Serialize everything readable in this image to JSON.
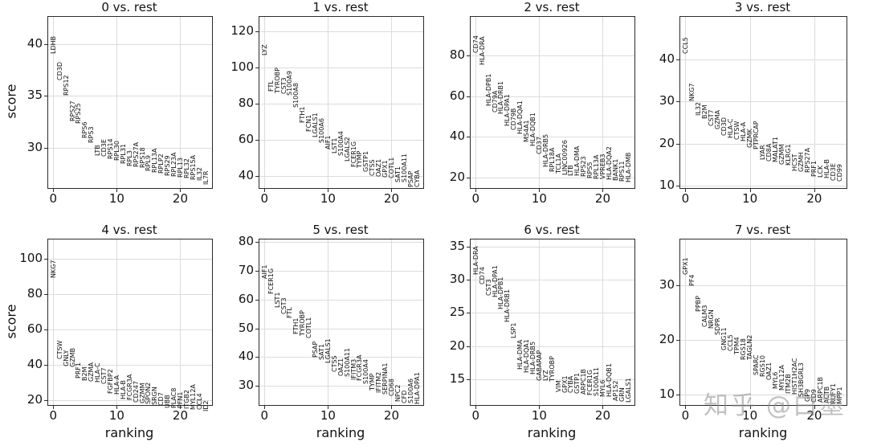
{
  "figure": {
    "ylabel": "score",
    "xlabel": "ranking",
    "watermark": "知乎 @白墨",
    "colors": {
      "grid": "#dcdcdc",
      "spine": "#2b2b2b",
      "text": "#141414",
      "watermark": "#8f8f8f",
      "background": "#ffffff"
    }
  },
  "chart_data": [
    {
      "type": "scatter",
      "title": "0 vs. rest",
      "xlabel": "ranking",
      "ylabel": "score",
      "xlim": [
        -0.8,
        25.0
      ],
      "ylim": [
        26.1,
        42.6
      ],
      "xticks": [
        0,
        10,
        20
      ],
      "yticks": [
        30,
        35,
        40
      ],
      "grid": true,
      "genes": [
        "LDHB",
        "CD3D",
        "RPS12",
        "RPS27",
        "RPS25",
        "RPS6",
        "RPS3",
        "LTB",
        "CD3E",
        "RPS14",
        "RPL30",
        "RPL31",
        "RPL3",
        "RPS27A",
        "RPS18",
        "RPL9",
        "RPL13A",
        "RPLP2",
        "RPS29",
        "RPL23A",
        "RPL13",
        "RPL32",
        "RPS15A",
        "IL32",
        "IL7R"
      ],
      "scores": [
        39.0,
        36.5,
        35.0,
        32.5,
        32.3,
        30.9,
        30.4,
        29.2,
        29.1,
        28.9,
        28.7,
        28.4,
        28.2,
        28.1,
        28.0,
        27.7,
        27.6,
        27.5,
        27.3,
        27.2,
        27.1,
        27.0,
        26.9,
        26.8,
        26.4
      ]
    },
    {
      "type": "scatter",
      "title": "1 vs. rest",
      "xlabel": "ranking",
      "ylabel": "score",
      "xlim": [
        -0.8,
        25.0
      ],
      "ylim": [
        33.3,
        128.0
      ],
      "xticks": [
        0,
        10,
        20
      ],
      "yticks": [
        40,
        60,
        80,
        100,
        120
      ],
      "grid": true,
      "genes": [
        "LYZ",
        "FTL",
        "TYROBP",
        "CST3",
        "S100A9",
        "S100A8",
        "FTH1",
        "FCN1",
        "LGALS1",
        "S100A6",
        "AIF1",
        "LST1",
        "S100A4",
        "LGALS2",
        "FCER1G",
        "TYMP",
        "GSTP1",
        "CTSS",
        "OAZ1",
        "GPX1",
        "COTL1",
        "SAT1",
        "S100A11",
        "PSAP",
        "CYBA"
      ],
      "scores": [
        106.7,
        86.7,
        85.8,
        85.3,
        84.4,
        77.8,
        69.3,
        64.4,
        61.3,
        58.2,
        54.7,
        52.4,
        51.1,
        48.0,
        44.9,
        44.4,
        42.2,
        40.0,
        39.6,
        39.1,
        38.7,
        36.4,
        36.2,
        33.9,
        33.8
      ]
    },
    {
      "type": "scatter",
      "title": "2 vs. rest",
      "xlabel": "ranking",
      "ylabel": "score",
      "xlim": [
        -0.8,
        25.0
      ],
      "ylim": [
        14.9,
        98.9
      ],
      "xticks": [
        0,
        10,
        20
      ],
      "yticks": [
        20,
        40,
        60,
        80
      ],
      "grid": true,
      "genes": [
        "CD74",
        "HLA-DRA",
        "HLA-DPB1",
        "CD79A",
        "HLA-DRB1",
        "HLA-DPA1",
        "CD79B",
        "HLA-DQA1",
        "MS4A1",
        "HLA-DQB1",
        "CD37",
        "HLA-DRB5",
        "RPL18A",
        "TCL1A",
        "LINC00926",
        "LTB",
        "HLA-DMA",
        "RPS23",
        "RPS5",
        "RPL13A",
        "VPREB3",
        "HLA-DQA2",
        "BANK1",
        "RPS11",
        "HLA-DMB"
      ],
      "scores": [
        81.2,
        75.3,
        55.3,
        52.1,
        51.3,
        45.4,
        43.4,
        41.4,
        37.2,
        35.3,
        31.3,
        25.1,
        22.8,
        22.0,
        21.2,
        20.8,
        20.7,
        20.4,
        19.6,
        19.3,
        19.2,
        18.9,
        18.5,
        18.1,
        17.7
      ]
    },
    {
      "type": "scatter",
      "title": "3 vs. rest",
      "xlabel": "ranking",
      "ylabel": "score",
      "xlim": [
        -0.8,
        25.0
      ],
      "ylim": [
        9.4,
        50.1
      ],
      "xticks": [
        0,
        10,
        20
      ],
      "yticks": [
        10,
        20,
        30,
        40
      ],
      "grid": true,
      "genes": [
        "CCL5",
        "NKG7",
        "IL32",
        "B2M",
        "CST7",
        "GZMA",
        "CD3D",
        "HLA-C",
        "CTSW",
        "HLA-A",
        "GZMK",
        "PTPRCAP",
        "LYAR",
        "CD8A",
        "MALAT1",
        "GZMM",
        "KLRG1",
        "HCST",
        "GZMH",
        "RPS27A",
        "PRF1",
        "LCK",
        "HLA-B",
        "CD3E",
        "CD99"
      ],
      "scores": [
        41.3,
        30.0,
        26.6,
        25.8,
        24.1,
        23.4,
        21.8,
        21.2,
        20.8,
        20.4,
        18.9,
        18.5,
        16.0,
        15.8,
        15.6,
        14.9,
        14.7,
        13.4,
        13.2,
        13.1,
        12.1,
        11.8,
        11.6,
        11.2,
        11.0
      ]
    },
    {
      "type": "scatter",
      "title": "4 vs. rest",
      "xlabel": "ranking",
      "ylabel": "score",
      "xlim": [
        -0.8,
        25.0
      ],
      "ylim": [
        17.4,
        110.7
      ],
      "xticks": [
        0,
        10,
        20
      ],
      "yticks": [
        20,
        40,
        60,
        80,
        100
      ],
      "grid": true,
      "genes": [
        "NKG7",
        "CTSW",
        "GNLY",
        "GZMB",
        "PRF1",
        "B2M",
        "GZMA",
        "HLA-C",
        "CST7",
        "FGFBP2",
        "HLA-A",
        "HLA-B",
        "FCGR3A",
        "CD247",
        "GZMM",
        "SPON2",
        "SRGN",
        "CD7",
        "UBB",
        "PLAC8",
        "PFN1",
        "ITGB2",
        "MYL12A",
        "CCL4",
        "ID2"
      ],
      "scores": [
        89.0,
        43.0,
        39.2,
        38.8,
        32.4,
        31.2,
        30.4,
        30.2,
        29.1,
        23.7,
        23.1,
        20.4,
        20.1,
        18.9,
        18.1,
        17.7,
        17.2,
        16.9,
        15.8,
        15.7,
        15.5,
        15.0,
        14.9,
        14.6,
        13.8
      ]
    },
    {
      "type": "scatter",
      "title": "5 vs. rest",
      "xlabel": "ranking",
      "ylabel": "score",
      "xlim": [
        -0.8,
        25.0
      ],
      "ylim": [
        23.4,
        80.8
      ],
      "xticks": [
        0,
        10,
        20
      ],
      "yticks": [
        30,
        40,
        50,
        60,
        70,
        80
      ],
      "grid": true,
      "genes": [
        "AIF1",
        "FCER1G",
        "LST1",
        "CST3",
        "FTL",
        "FTH1",
        "TYROBP",
        "COTL1",
        "PSAP",
        "SAT1",
        "LGALS1",
        "CTSS",
        "OAZ1",
        "S100A11",
        "IFITM3",
        "FCGR3A",
        "S100A4",
        "TYMP",
        "IFITM2",
        "SERPINA1",
        "CD68",
        "NPC2",
        "CFD",
        "S100A6",
        "HLA-DPA1"
      ],
      "scores": [
        67.2,
        61.9,
        57.2,
        55.0,
        53.6,
        48.0,
        47.5,
        46.6,
        39.9,
        38.9,
        38.0,
        34.8,
        33.5,
        33.2,
        32.1,
        31.8,
        30.7,
        28.4,
        27.6,
        27.0,
        26.5,
        24.5,
        24.0,
        23.9,
        23.8
      ]
    },
    {
      "type": "scatter",
      "title": "6 vs. rest",
      "xlabel": "ranking",
      "ylabel": "score",
      "xlim": [
        -0.8,
        25.0
      ],
      "ylim": [
        11.1,
        36.1
      ],
      "xticks": [
        0,
        10,
        20
      ],
      "yticks": [
        15,
        20,
        25,
        30,
        35
      ],
      "grid": true,
      "genes": [
        "HLA-DRA",
        "CD74",
        "CST3",
        "HLA-DPA1",
        "HLA-DPB1",
        "HLA-DRB1",
        "LSP1",
        "HLA-DMA",
        "HLA-DQA1",
        "HLA-DRB5",
        "GABARAP",
        "LYZ",
        "TYROBP",
        "VIM",
        "GPX1",
        "CYBA",
        "GSTP1",
        "ARPC1B",
        "FCER1G",
        "S100A11",
        "MYL6",
        "HLA-DQB1",
        "AP1S2",
        "GRN",
        "LGALS1"
      ],
      "scores": [
        30.7,
        29.3,
        27.6,
        27.4,
        25.6,
        23.6,
        21.2,
        16.5,
        16.0,
        15.7,
        14.8,
        14.7,
        14.6,
        13.0,
        12.9,
        12.9,
        12.8,
        12.7,
        12.5,
        12.4,
        12.3,
        12.3,
        11.7,
        11.6,
        11.5
      ]
    },
    {
      "type": "scatter",
      "title": "7 vs. rest",
      "xlabel": "ranking",
      "ylabel": "score",
      "xlim": [
        -0.8,
        25.0
      ],
      "ylim": [
        8.1,
        38.4
      ],
      "xticks": [
        0,
        10,
        20
      ],
      "yticks": [
        10,
        20,
        30
      ],
      "grid": true,
      "genes": [
        "GPX1",
        "PF4",
        "PPBP",
        "CALM3",
        "NRGN",
        "SDPR",
        "GNG11",
        "CCL5",
        "TPM4",
        "RGS18",
        "TAGLN2",
        "SPARC",
        "RGS10",
        "OAZ1",
        "MYL6",
        "MYL12A",
        "ITM2B",
        "HIST1H2AC",
        "SH3BGRL3",
        "GP9",
        "CD9",
        "ARPC1B",
        "ACTB",
        "RUFY1",
        "MPP1"
      ],
      "scores": [
        31.9,
        29.9,
        25.2,
        22.4,
        22.0,
        20.9,
        18.1,
        17.9,
        17.3,
        16.4,
        16.3,
        13.5,
        13.3,
        12.6,
        11.1,
        10.7,
        10.1,
        10.0,
        9.6,
        8.7,
        8.6,
        8.5,
        8.4,
        8.3,
        8.2
      ]
    }
  ]
}
